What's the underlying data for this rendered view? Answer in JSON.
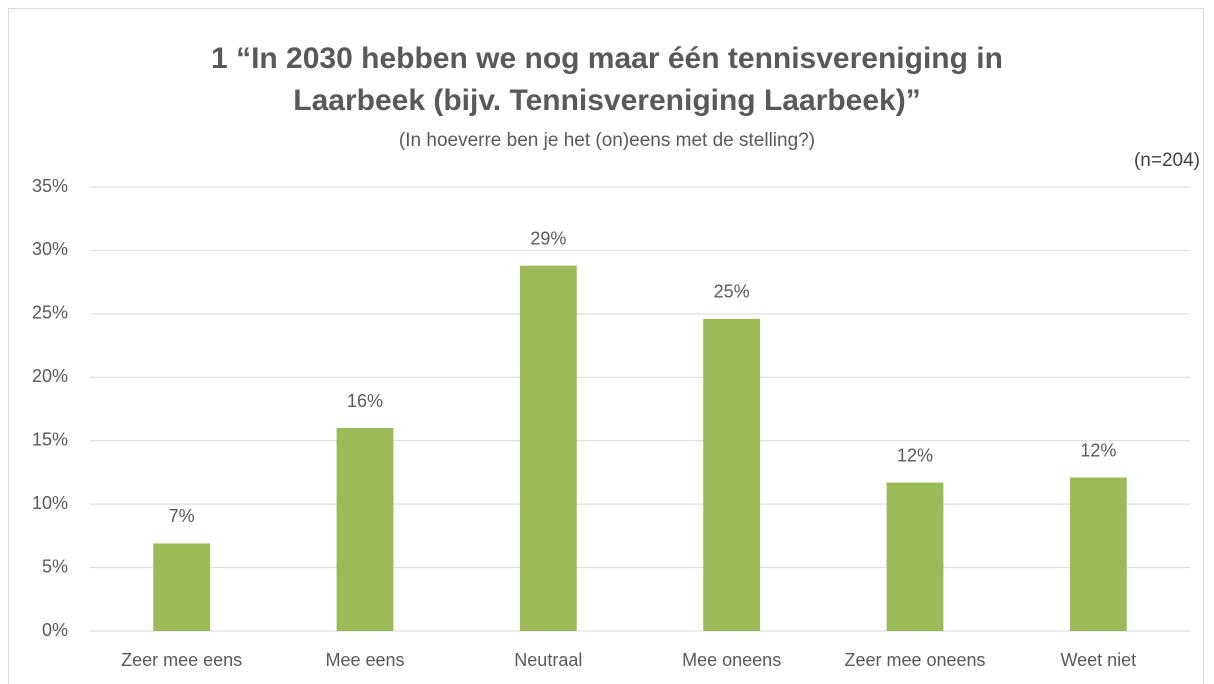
{
  "chart_data": {
    "type": "bar",
    "title": "1 “In 2030 hebben we nog maar één tennisvereniging in Laarbeek (bijv. Tennisvereniging Laarbeek)”",
    "subtitle": "(In hoeverre ben je het (on)eens met de stelling?)",
    "annotation": "(n=204)",
    "categories": [
      "Zeer mee eens",
      "Mee eens",
      "Neutraal",
      "Mee oneens",
      "Zeer mee oneens",
      "Weet niet"
    ],
    "values": [
      6.9,
      16.0,
      28.8,
      24.6,
      11.7,
      12.1
    ],
    "value_labels": [
      "7%",
      "16%",
      "29%",
      "25%",
      "12%",
      "12%"
    ],
    "color": "#9bbb59",
    "ylim": [
      0,
      35
    ],
    "yticks": [
      {
        "value": 0,
        "label": "0%"
      },
      {
        "value": 5,
        "label": "5%"
      },
      {
        "value": 10,
        "label": "10%"
      },
      {
        "value": 15,
        "label": "15%"
      },
      {
        "value": 20,
        "label": "20%"
      },
      {
        "value": 25,
        "label": "25%"
      },
      {
        "value": 30,
        "label": "30%"
      },
      {
        "value": 35,
        "label": "35%"
      }
    ],
    "grid": true
  }
}
